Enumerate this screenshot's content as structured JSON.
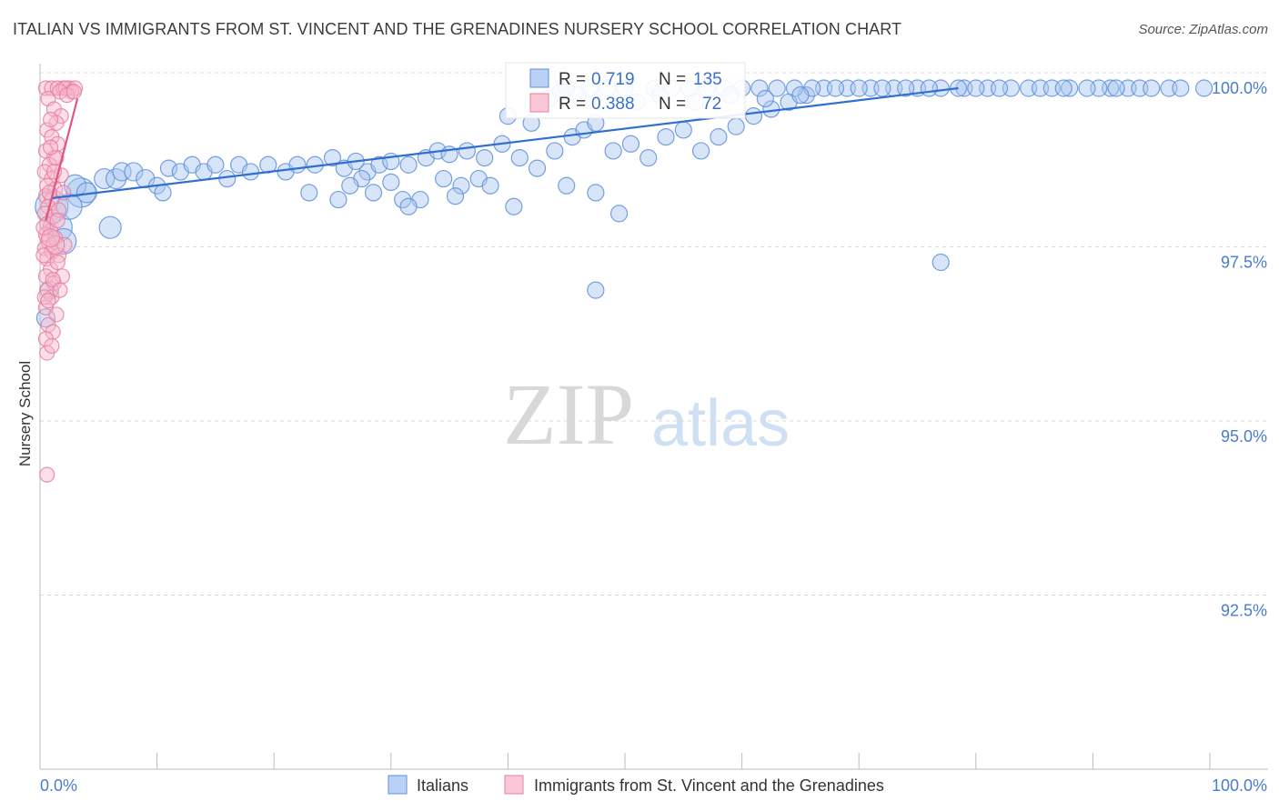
{
  "header": {
    "title": "ITALIAN VS IMMIGRANTS FROM ST. VINCENT AND THE GRENADINES NURSERY SCHOOL CORRELATION CHART",
    "source": "Source: ZipAtlas.com"
  },
  "watermark": {
    "zip": "ZIP",
    "atlas": "atlas"
  },
  "colors": {
    "blue_fill": "#a9c6f0",
    "blue_stroke": "#5f8fdc",
    "blue_line": "#2f6fd0",
    "pink_fill": "#f7b9cc",
    "pink_stroke": "#e97fa0",
    "pink_line": "#e0567f",
    "grid": "#d9d9d9",
    "tick_label": "#4a7bd0"
  },
  "chart_data": {
    "type": "scatter",
    "title": "ITALIAN VS IMMIGRANTS FROM ST. VINCENT AND THE GRENADINES NURSERY SCHOOL CORRELATION CHART",
    "xlabel": "",
    "ylabel": "Nursery School",
    "xlim": [
      0,
      100
    ],
    "ylim": [
      90.0,
      100.15
    ],
    "x_tick_labels": [
      "0.0%",
      "100.0%"
    ],
    "y_ticks": [
      {
        "value": 100.0,
        "label": "100.0%"
      },
      {
        "value": 97.5,
        "label": "97.5%"
      },
      {
        "value": 95.0,
        "label": "95.0%"
      },
      {
        "value": 92.5,
        "label": "92.5%"
      }
    ],
    "grid": true,
    "legend_position": "bottom",
    "stats": [
      {
        "r_label": "R =",
        "r": "0.719",
        "n_label": "N =",
        "n": "135"
      },
      {
        "r_label": "R =",
        "r": "0.388",
        "n_label": "N =",
        "n": "72"
      }
    ],
    "series": [
      {
        "name": "Italians",
        "color": "#a9c6f0",
        "trend": {
          "x": [
            1.0,
            78.5
          ],
          "y": [
            98.42,
            100.0
          ]
        },
        "points": [
          [
            1.0,
            98.3,
            18
          ],
          [
            1.5,
            98.0,
            16
          ],
          [
            2.0,
            97.8,
            14
          ],
          [
            3.5,
            98.5,
            16
          ],
          [
            2.5,
            98.3,
            14
          ],
          [
            3.0,
            98.6,
            12
          ],
          [
            4.0,
            98.5,
            11
          ],
          [
            5.5,
            98.7,
            11
          ],
          [
            6.5,
            98.7,
            11
          ],
          [
            7.0,
            98.8,
            10
          ],
          [
            8.0,
            98.8,
            10
          ],
          [
            9.0,
            98.7,
            10
          ],
          [
            10.0,
            98.6,
            9
          ],
          [
            10.5,
            98.5,
            9
          ],
          [
            11.0,
            98.85,
            9
          ],
          [
            12.0,
            98.8,
            9
          ],
          [
            13.0,
            98.9,
            9
          ],
          [
            14.0,
            98.8,
            9
          ],
          [
            15.0,
            98.9,
            9
          ],
          [
            16.0,
            98.7,
            9
          ],
          [
            17.0,
            98.9,
            9
          ],
          [
            18.0,
            98.8,
            9
          ],
          [
            19.5,
            98.9,
            9
          ],
          [
            21.0,
            98.8,
            9
          ],
          [
            22.0,
            98.9,
            9
          ],
          [
            23.5,
            98.9,
            9
          ],
          [
            25.0,
            99.0,
            9
          ],
          [
            26.0,
            98.85,
            9
          ],
          [
            27.0,
            98.95,
            9
          ],
          [
            28.0,
            98.8,
            9
          ],
          [
            29.0,
            98.9,
            9
          ],
          [
            30.0,
            98.95,
            9
          ],
          [
            31.5,
            98.9,
            9
          ],
          [
            33.0,
            99.0,
            9
          ],
          [
            34.0,
            99.1,
            9
          ],
          [
            35.0,
            99.05,
            9
          ],
          [
            36.5,
            99.1,
            9
          ],
          [
            38.0,
            99.0,
            9
          ],
          [
            39.5,
            99.2,
            9
          ],
          [
            41.0,
            99.0,
            9
          ],
          [
            42.5,
            98.85,
            9
          ],
          [
            44.0,
            99.1,
            9
          ],
          [
            45.5,
            99.3,
            9
          ],
          [
            46.5,
            99.4,
            9
          ],
          [
            47.5,
            99.5,
            9
          ],
          [
            49.0,
            99.1,
            9
          ],
          [
            50.5,
            99.2,
            9
          ],
          [
            52.0,
            99.0,
            9
          ],
          [
            53.5,
            99.3,
            9
          ],
          [
            55.0,
            99.4,
            9
          ],
          [
            56.5,
            99.1,
            9
          ],
          [
            58.0,
            99.3,
            9
          ],
          [
            59.5,
            99.45,
            9
          ],
          [
            61.0,
            99.6,
            9
          ],
          [
            62.5,
            99.7,
            9
          ],
          [
            64.0,
            99.8,
            9
          ],
          [
            65.5,
            99.9,
            9
          ],
          [
            67.0,
            100.0,
            9
          ],
          [
            69.0,
            100.0,
            9
          ],
          [
            71.0,
            100.0,
            9
          ],
          [
            73.0,
            100.0,
            9
          ],
          [
            75.0,
            100.0,
            9
          ],
          [
            77.0,
            100.0,
            9
          ],
          [
            79.0,
            100.0,
            9
          ],
          [
            81.0,
            100.0,
            9
          ],
          [
            83.0,
            100.0,
            9
          ],
          [
            84.5,
            100.0,
            9
          ],
          [
            88.0,
            100.0,
            9
          ],
          [
            91.5,
            100.0,
            9
          ],
          [
            93.0,
            100.0,
            9
          ],
          [
            96.5,
            100.0,
            9
          ],
          [
            99.5,
            100.0,
            9
          ],
          [
            80.0,
            100.0,
            9
          ],
          [
            82.0,
            100.0,
            9
          ],
          [
            85.5,
            100.0,
            9
          ],
          [
            90.5,
            100.0,
            9
          ],
          [
            92.0,
            100.0,
            9
          ],
          [
            94.0,
            100.0,
            9
          ],
          [
            47.0,
            100.0,
            9
          ],
          [
            48.5,
            100.0,
            9
          ],
          [
            50.0,
            100.0,
            9
          ],
          [
            52.5,
            100.0,
            9
          ],
          [
            54.0,
            100.0,
            9
          ],
          [
            55.5,
            100.0,
            9
          ],
          [
            57.0,
            100.0,
            9
          ],
          [
            58.5,
            100.0,
            9
          ],
          [
            60.0,
            100.0,
            9
          ],
          [
            61.5,
            100.0,
            9
          ],
          [
            63.0,
            100.0,
            9
          ],
          [
            64.5,
            100.0,
            9
          ],
          [
            66.0,
            100.0,
            9
          ],
          [
            68.0,
            100.0,
            9
          ],
          [
            70.0,
            100.0,
            9
          ],
          [
            72.0,
            100.0,
            9
          ],
          [
            74.0,
            100.0,
            9
          ],
          [
            76.0,
            100.0,
            9
          ],
          [
            78.5,
            100.0,
            9
          ],
          [
            86.5,
            100.0,
            9
          ],
          [
            87.5,
            100.0,
            9
          ],
          [
            89.5,
            100.0,
            9
          ],
          [
            95.0,
            100.0,
            9
          ],
          [
            97.5,
            100.0,
            9
          ],
          [
            45.0,
            100.0,
            9
          ],
          [
            43.5,
            99.85,
            9
          ],
          [
            44.5,
            99.95,
            9
          ],
          [
            46.0,
            99.9,
            9
          ],
          [
            51.0,
            99.8,
            9
          ],
          [
            53.0,
            99.9,
            9
          ],
          [
            56.0,
            99.8,
            9
          ],
          [
            59.0,
            99.9,
            9
          ],
          [
            62.0,
            99.85,
            9
          ],
          [
            65.0,
            99.9,
            9
          ],
          [
            40.0,
            99.6,
            9
          ],
          [
            42.0,
            99.5,
            9
          ],
          [
            31.0,
            98.4,
            9
          ],
          [
            32.5,
            98.4,
            9
          ],
          [
            31.5,
            98.3,
            9
          ],
          [
            37.5,
            98.7,
            9
          ],
          [
            36.0,
            98.6,
            9
          ],
          [
            38.5,
            98.6,
            9
          ],
          [
            40.5,
            98.3,
            9
          ],
          [
            35.5,
            98.45,
            9
          ],
          [
            49.5,
            98.2,
            9
          ],
          [
            47.5,
            98.5,
            9
          ],
          [
            45.0,
            98.6,
            9
          ],
          [
            34.5,
            98.7,
            9
          ],
          [
            25.5,
            98.4,
            9
          ],
          [
            23.0,
            98.5,
            9
          ],
          [
            30.0,
            98.65,
            9
          ],
          [
            27.5,
            98.7,
            9
          ],
          [
            26.5,
            98.6,
            9
          ],
          [
            28.5,
            98.5,
            9
          ],
          [
            6.0,
            98.0,
            12
          ],
          [
            0.5,
            96.7,
            10
          ],
          [
            0.8,
            97.1,
            10
          ],
          [
            77.0,
            97.5,
            9
          ],
          [
            47.5,
            97.1,
            9
          ]
        ]
      },
      {
        "name": "Immigrants from St. Vincent and the Grenadines",
        "color": "#f7b9cc",
        "trend": {
          "x": [
            0.5,
            3.2
          ],
          "y": [
            98.1,
            99.85
          ]
        },
        "points": [
          [
            0.5,
            100.0,
            8
          ],
          [
            1.0,
            100.0,
            8
          ],
          [
            1.5,
            100.0,
            8
          ],
          [
            2.0,
            100.0,
            8
          ],
          [
            2.5,
            100.0,
            8
          ],
          [
            3.0,
            100.0,
            8
          ],
          [
            0.7,
            99.85,
            8
          ],
          [
            1.2,
            99.7,
            8
          ],
          [
            1.8,
            99.6,
            8
          ],
          [
            0.6,
            99.4,
            8
          ],
          [
            1.0,
            99.3,
            8
          ],
          [
            1.5,
            99.2,
            8
          ],
          [
            0.5,
            99.1,
            8
          ],
          [
            1.2,
            99.0,
            8
          ],
          [
            0.8,
            98.9,
            8
          ],
          [
            0.4,
            98.8,
            8
          ],
          [
            1.0,
            98.7,
            8
          ],
          [
            0.6,
            98.6,
            8
          ],
          [
            1.3,
            98.55,
            8
          ],
          [
            0.5,
            98.45,
            8
          ],
          [
            1.0,
            98.4,
            8
          ],
          [
            0.7,
            98.3,
            8
          ],
          [
            0.4,
            98.2,
            8
          ],
          [
            1.1,
            98.15,
            8
          ],
          [
            0.6,
            98.05,
            8
          ],
          [
            0.9,
            97.95,
            8
          ],
          [
            0.5,
            97.9,
            8
          ],
          [
            1.3,
            97.85,
            8
          ],
          [
            0.7,
            97.8,
            8
          ],
          [
            0.4,
            97.7,
            8
          ],
          [
            1.0,
            97.65,
            8
          ],
          [
            1.6,
            97.6,
            8
          ],
          [
            0.6,
            97.55,
            8
          ],
          [
            0.9,
            97.4,
            8
          ],
          [
            0.5,
            97.3,
            8
          ],
          [
            1.2,
            97.2,
            8
          ],
          [
            0.6,
            97.1,
            8
          ],
          [
            1.0,
            97.0,
            8
          ],
          [
            0.5,
            96.85,
            8
          ],
          [
            1.4,
            96.75,
            8
          ],
          [
            0.7,
            96.6,
            8
          ],
          [
            1.1,
            96.5,
            8
          ],
          [
            0.5,
            96.4,
            8
          ],
          [
            0.6,
            96.2,
            8
          ],
          [
            0.6,
            94.45,
            8
          ],
          [
            2.2,
            100.0,
            8
          ],
          [
            2.7,
            99.95,
            8
          ],
          [
            1.7,
            99.95,
            8
          ],
          [
            1.4,
            99.5,
            8
          ],
          [
            0.9,
            99.55,
            8
          ],
          [
            1.8,
            98.75,
            8
          ],
          [
            2.0,
            98.5,
            8
          ],
          [
            1.6,
            98.25,
            8
          ],
          [
            2.1,
            97.75,
            8
          ],
          [
            1.5,
            97.5,
            8
          ],
          [
            1.9,
            97.3,
            8
          ],
          [
            0.3,
            98.0,
            8
          ],
          [
            0.3,
            97.6,
            8
          ],
          [
            0.8,
            98.5,
            8
          ],
          [
            1.2,
            98.8,
            8
          ],
          [
            1.4,
            99.0,
            8
          ],
          [
            0.9,
            99.15,
            8
          ],
          [
            2.3,
            99.9,
            8
          ],
          [
            2.9,
            99.95,
            8
          ],
          [
            1.1,
            97.25,
            8
          ],
          [
            0.4,
            97.0,
            8
          ],
          [
            1.7,
            97.1,
            8
          ],
          [
            1.0,
            96.3,
            8
          ],
          [
            0.7,
            96.95,
            8
          ],
          [
            1.5,
            98.1,
            8
          ],
          [
            1.3,
            97.75,
            10
          ],
          [
            0.9,
            97.85,
            10
          ]
        ]
      }
    ]
  }
}
